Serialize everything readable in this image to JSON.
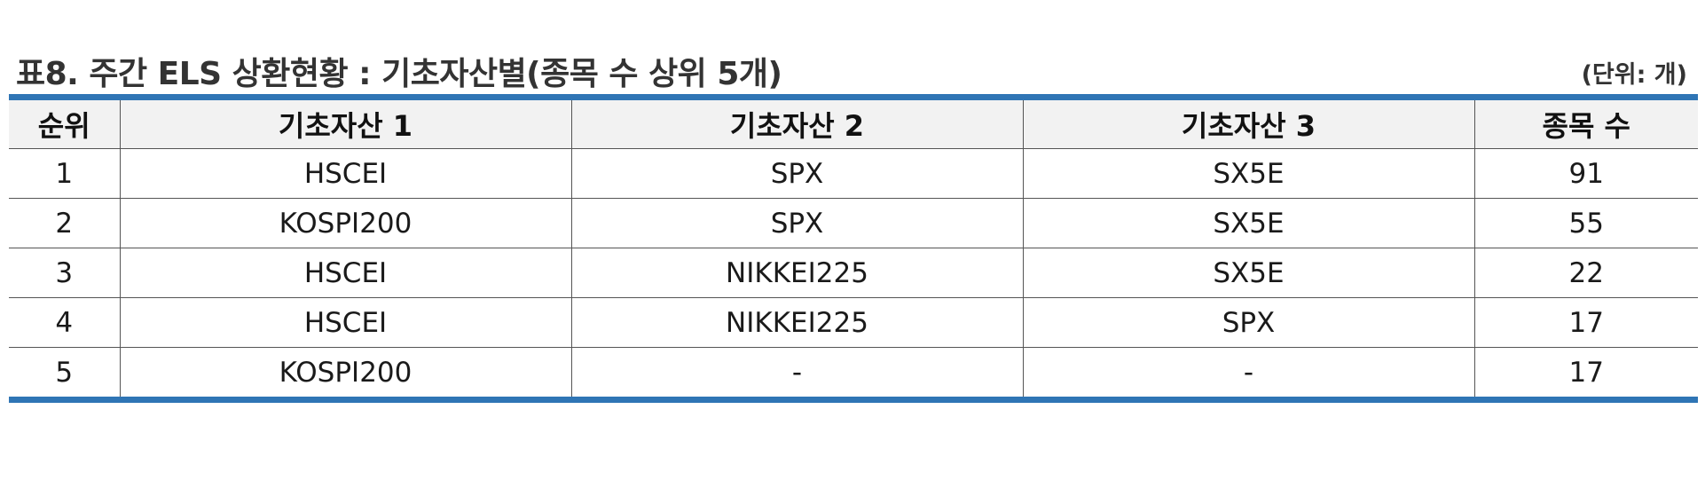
{
  "table": {
    "title": "표8. 주간 ELS 상환현황 : 기초자산별(종목 수 상위 5개)",
    "unit": "(단위: 개)",
    "headers": [
      "순위",
      "기초자산 1",
      "기초자산 2",
      "기초자산 3",
      "종목 수"
    ],
    "rows": [
      [
        "1",
        "HSCEI",
        "SPX",
        "SX5E",
        "91"
      ],
      [
        "2",
        "KOSPI200",
        "SPX",
        "SX5E",
        "55"
      ],
      [
        "3",
        "HSCEI",
        "NIKKEI225",
        "SX5E",
        "22"
      ],
      [
        "4",
        "HSCEI",
        "NIKKEI225",
        "SPX",
        "17"
      ],
      [
        "5",
        "KOSPI200",
        "-",
        "-",
        "17"
      ]
    ]
  },
  "colors": {
    "accent_rule": "#2f75b5",
    "header_background": "#f2f2f2"
  }
}
